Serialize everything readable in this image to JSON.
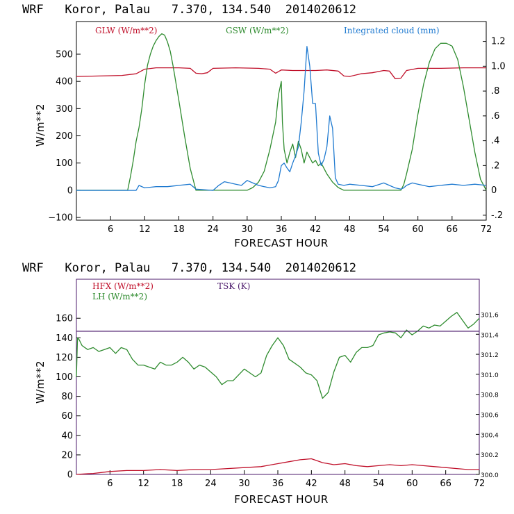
{
  "chart_data": [
    {
      "type": "line",
      "title": "WRF   Koror, Palau   7.370, 134.540  2014020612",
      "xlabel": "FORECAST HOUR",
      "ylabel": "W/m**2",
      "xlim": [
        0,
        72
      ],
      "ylim": [
        -110,
        620
      ],
      "y2lim": [
        -0.24,
        1.36
      ],
      "x_ticks": [
        6,
        12,
        18,
        24,
        30,
        36,
        42,
        48,
        54,
        60,
        66,
        72
      ],
      "y_ticks": [
        -100,
        0,
        100,
        200,
        300,
        400,
        500
      ],
      "y2_ticks": [
        -0.2,
        0,
        0.2,
        0.4,
        0.6,
        0.8,
        1.0,
        1.2
      ],
      "y2_tick_labels": [
        "-.2",
        "0",
        ".2",
        ".4",
        ".6",
        ".8",
        "1.0",
        "1.2"
      ],
      "legend": [
        "GLW (W/m**2)",
        "GSW (W/m**2)",
        "Integrated cloud (mm)"
      ],
      "series": [
        {
          "name": "GLW (W/m**2)",
          "axis": "left",
          "color": "#c0102a",
          "x": [
            0,
            4,
            8,
            10.5,
            12,
            14,
            18,
            20,
            21,
            22,
            23,
            24,
            28,
            32,
            34,
            35,
            36,
            38,
            42,
            44,
            46,
            47,
            48,
            50,
            52,
            54,
            55,
            56,
            57,
            58,
            60,
            64,
            68,
            72
          ],
          "y": [
            418,
            420,
            422,
            428,
            445,
            450,
            450,
            448,
            430,
            428,
            432,
            448,
            450,
            448,
            445,
            430,
            442,
            440,
            440,
            442,
            438,
            420,
            418,
            428,
            432,
            440,
            438,
            410,
            412,
            440,
            448,
            448,
            450,
            450
          ]
        },
        {
          "name": "GSW (W/m**2)",
          "axis": "left",
          "color": "#2e8b2e",
          "x": [
            0,
            9,
            9.5,
            10,
            10.5,
            11,
            11.5,
            12,
            12.5,
            13,
            13.5,
            14,
            14.5,
            15,
            15.5,
            16,
            16.5,
            17,
            18,
            19,
            20,
            21,
            22,
            30,
            31,
            32,
            33,
            34,
            35,
            35.5,
            36,
            36.2,
            36.5,
            37,
            37.5,
            38,
            38.5,
            39,
            39.5,
            40,
            40.5,
            41,
            41.5,
            42,
            42.5,
            43,
            43.5,
            44,
            45,
            46,
            47,
            52,
            56,
            57,
            57.5,
            58,
            59,
            60,
            61,
            62,
            63,
            64,
            65,
            66,
            67,
            68,
            69,
            70,
            71,
            72
          ],
          "y": [
            0,
            0,
            50,
            110,
            180,
            230,
            300,
            390,
            460,
            500,
            530,
            550,
            565,
            575,
            570,
            545,
            510,
            455,
            330,
            200,
            80,
            0,
            0,
            0,
            10,
            30,
            70,
            150,
            250,
            350,
            400,
            250,
            150,
            100,
            140,
            170,
            120,
            180,
            150,
            100,
            140,
            120,
            100,
            110,
            90,
            100,
            80,
            60,
            30,
            10,
            0,
            0,
            0,
            0,
            20,
            60,
            150,
            280,
            390,
            470,
            520,
            540,
            540,
            530,
            480,
            380,
            260,
            140,
            40,
            0
          ]
        },
        {
          "name": "Integrated cloud (mm)",
          "axis": "right",
          "color": "#1f7ad0",
          "x": [
            0,
            10.5,
            11,
            12,
            14,
            16,
            18,
            20,
            21,
            24,
            25,
            26,
            27,
            28,
            29,
            30,
            31,
            32,
            33,
            34,
            35,
            35.5,
            36,
            36.5,
            37,
            37.5,
            38,
            38.5,
            39,
            39.5,
            40,
            40.5,
            41,
            41.5,
            42,
            42.5,
            43,
            43.5,
            44,
            44.5,
            45,
            45.5,
            46,
            47,
            48,
            50,
            52,
            54,
            56,
            57,
            57.5,
            58,
            59,
            60,
            62,
            64,
            66,
            68,
            70,
            72
          ],
          "y": [
            0,
            0,
            0.04,
            0.02,
            0.03,
            0.03,
            0.04,
            0.05,
            0.01,
            0,
            0.04,
            0.07,
            0.06,
            0.05,
            0.04,
            0.08,
            0.06,
            0.04,
            0.03,
            0.02,
            0.03,
            0.08,
            0.2,
            0.22,
            0.18,
            0.15,
            0.22,
            0.28,
            0.35,
            0.55,
            0.8,
            1.16,
            1.0,
            0.7,
            0.7,
            0.3,
            0.2,
            0.25,
            0.35,
            0.6,
            0.5,
            0.1,
            0.05,
            0.04,
            0.05,
            0.04,
            0.03,
            0.06,
            0.02,
            0.01,
            0.02,
            0.04,
            0.06,
            0.05,
            0.03,
            0.04,
            0.05,
            0.04,
            0.05,
            0.04
          ]
        }
      ]
    },
    {
      "type": "line",
      "title": "WRF   Koror, Palau   7.370, 134.540  2014020612",
      "xlabel": "FORECAST HOUR",
      "ylabel": "W/m**2",
      "xlim": [
        0,
        72
      ],
      "ylim": [
        0,
        200
      ],
      "y2lim": [
        300.0,
        301.95
      ],
      "x_ticks": [
        6,
        12,
        18,
        24,
        30,
        36,
        42,
        48,
        54,
        60,
        66,
        72
      ],
      "y_ticks": [
        0,
        20,
        40,
        60,
        80,
        100,
        120,
        140,
        160
      ],
      "y2_ticks": [
        300.0,
        300.2,
        300.4,
        300.6,
        300.8,
        301.0,
        301.2,
        301.4,
        301.6
      ],
      "y2_tick_labels": [
        "300.0",
        "300.2",
        "300.4",
        "300.6",
        "300.8",
        "301.0",
        "301.2",
        "301.4",
        "301.6"
      ],
      "legend": [
        "HFX (W/m**2)",
        "LH  (W/m**2)",
        "TSK (K)"
      ],
      "series": [
        {
          "name": "HFX (W/m**2)",
          "axis": "left",
          "color": "#c0102a",
          "x": [
            0,
            3,
            6,
            9,
            12,
            15,
            18,
            21,
            24,
            27,
            30,
            33,
            36,
            38,
            40,
            42,
            43,
            44,
            45,
            46,
            48,
            50,
            52,
            54,
            56,
            58,
            60,
            62,
            64,
            66,
            68,
            70,
            72
          ],
          "y": [
            0,
            1,
            3,
            4,
            4,
            5,
            4,
            5,
            5,
            6,
            7,
            8,
            11,
            13,
            15,
            16,
            14,
            12,
            11,
            10,
            11,
            9,
            8,
            9,
            10,
            9,
            10,
            9,
            8,
            7,
            6,
            5,
            5
          ]
        },
        {
          "name": "LH  (W/m**2)",
          "axis": "left",
          "color": "#2e8b2e",
          "x": [
            0,
            0.2,
            0.5,
            1,
            2,
            3,
            4,
            5,
            6,
            7,
            8,
            9,
            10,
            11,
            12,
            13,
            14,
            15,
            16,
            17,
            18,
            19,
            20,
            21,
            22,
            23,
            24,
            25,
            26,
            27,
            28,
            29,
            30,
            31,
            32,
            33,
            34,
            35,
            36,
            37,
            38,
            39,
            40,
            41,
            42,
            43,
            44,
            45,
            46,
            47,
            48,
            49,
            50,
            51,
            52,
            53,
            54,
            55,
            56,
            57,
            58,
            59,
            60,
            61,
            62,
            63,
            64,
            65,
            66,
            67,
            68,
            69,
            70,
            71,
            72
          ],
          "y": [
            100,
            140,
            138,
            132,
            128,
            130,
            126,
            128,
            130,
            124,
            130,
            128,
            118,
            112,
            112,
            110,
            108,
            115,
            112,
            112,
            115,
            120,
            115,
            108,
            112,
            110,
            105,
            100,
            92,
            96,
            96,
            102,
            108,
            104,
            100,
            104,
            122,
            132,
            140,
            132,
            118,
            114,
            110,
            104,
            102,
            96,
            78,
            84,
            105,
            120,
            122,
            115,
            125,
            130,
            130,
            132,
            143,
            145,
            146,
            145,
            140,
            148,
            143,
            147,
            152,
            150,
            153,
            152,
            157,
            162,
            166,
            158,
            150,
            154,
            160
          ]
        },
        {
          "name": "TSK (K)",
          "axis": "right",
          "color": "#4b1a6b",
          "x": [
            0,
            72
          ],
          "y": [
            301.43,
            301.43
          ]
        }
      ]
    }
  ]
}
